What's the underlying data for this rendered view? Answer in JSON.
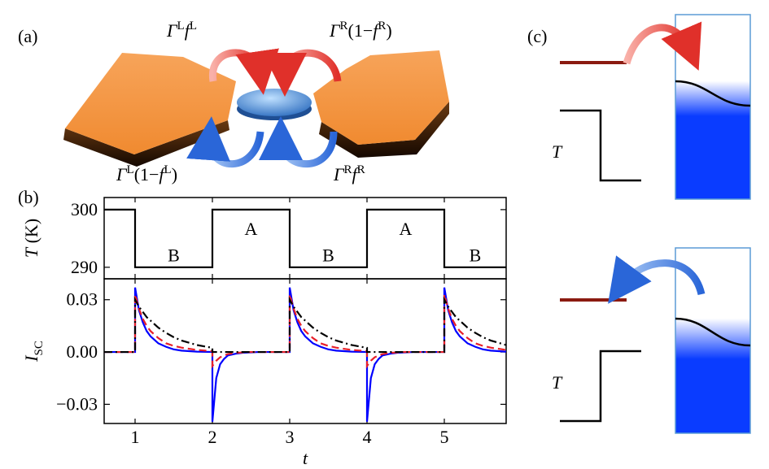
{
  "panel_labels": [
    "(a)",
    "(b)",
    "(c)"
  ],
  "panel_a": {
    "labels": [
      [
        {
          "text": "Γ",
          "italic": true
        },
        {
          "text": "L",
          "sup": true
        },
        {
          "text": "f",
          "italic": true
        },
        {
          "text": "L",
          "sup": true
        }
      ],
      [
        {
          "text": "Γ",
          "italic": true
        },
        {
          "text": "R",
          "sup": true
        },
        {
          "text": "(1−"
        },
        {
          "text": "f",
          "italic": true
        },
        {
          "text": "R",
          "sup": true
        },
        {
          "text": ")"
        }
      ],
      [
        {
          "text": "Γ",
          "italic": true
        },
        {
          "text": "L",
          "sup": true
        },
        {
          "text": "(1−"
        },
        {
          "text": "f",
          "italic": true
        },
        {
          "text": "L",
          "sup": true
        },
        {
          "text": ")"
        }
      ],
      [
        {
          "text": "Γ",
          "italic": true
        },
        {
          "text": "R",
          "sup": true
        },
        {
          "text": "f",
          "italic": true
        },
        {
          "text": "R",
          "sup": true
        }
      ]
    ]
  },
  "panel_c": {
    "labels": [
      "T",
      "T"
    ]
  },
  "chart_data": [
    {
      "type": "line",
      "y_label": [
        {
          "text": "T",
          "italic": true
        },
        {
          "text": " (K)"
        }
      ],
      "xlim": [
        0.6,
        5.8
      ],
      "ylim": [
        288,
        302.1
      ],
      "yticks": [
        290,
        300
      ],
      "x": [
        0.6,
        1,
        1,
        2,
        2,
        3,
        3,
        4,
        4,
        5,
        5,
        5.8
      ],
      "series": [
        {
          "color": "#000000",
          "dash": "solid",
          "values": [
            300,
            300,
            290,
            290,
            300,
            300,
            290,
            290,
            300,
            300,
            290,
            290
          ]
        }
      ],
      "annotations": [
        {
          "text": "B",
          "x": 1.5,
          "y": 292
        },
        {
          "text": "A",
          "x": 2.5,
          "y": 296.6
        },
        {
          "text": "B",
          "x": 3.5,
          "y": 292
        },
        {
          "text": "A",
          "x": 4.5,
          "y": 296.6
        },
        {
          "text": "B",
          "x": 5.4,
          "y": 292
        }
      ]
    },
    {
      "type": "line",
      "y_label": [
        {
          "text": "I",
          "italic": true
        },
        {
          "text": "SC",
          "sub": true
        }
      ],
      "x_label": "t",
      "xlim": [
        0.6,
        5.8
      ],
      "ylim": [
        -0.041,
        0.042
      ],
      "xticks": [
        1,
        2,
        3,
        4,
        5
      ],
      "yticks": [
        {
          "value": 0.03,
          "label": "0.03"
        },
        {
          "value": 0,
          "label": "0.00"
        },
        {
          "value": -0.03,
          "label": "−0.03"
        }
      ],
      "x": [
        0.6,
        1,
        1,
        1.05,
        1.1,
        1.15,
        1.2,
        1.3,
        1.4,
        1.5,
        1.6,
        1.8,
        2,
        2,
        2.05,
        2.1,
        2.15,
        2.2,
        2.3,
        2.4,
        2.5,
        2.6,
        2.8,
        3,
        3,
        3.05,
        3.1,
        3.15,
        3.2,
        3.3,
        3.4,
        3.5,
        3.6,
        3.8,
        4,
        4,
        4.05,
        4.1,
        4.15,
        4.2,
        4.3,
        4.4,
        4.5,
        4.6,
        4.8,
        5,
        5,
        5.05,
        5.1,
        5.15,
        5.2,
        5.3,
        5.4,
        5.5,
        5.6,
        5.8
      ],
      "series": [
        {
          "color": "#0000ff",
          "dash": "solid",
          "values": [
            0,
            0,
            0.037,
            0.024,
            0.017,
            0.012,
            0.009,
            0.005,
            0.003,
            0.0015,
            0.0008,
            0.0002,
            0,
            -0.04,
            -0.015,
            -0.007,
            -0.004,
            -0.002,
            -0.001,
            -0.0004,
            -0.0002,
            0,
            0,
            0,
            0.037,
            0.024,
            0.017,
            0.012,
            0.009,
            0.005,
            0.003,
            0.0015,
            0.0008,
            0.0002,
            0,
            -0.04,
            -0.015,
            -0.007,
            -0.004,
            -0.002,
            -0.001,
            -0.0004,
            -0.0002,
            0,
            0,
            0,
            0.037,
            0.024,
            0.017,
            0.012,
            0.009,
            0.005,
            0.003,
            0.0015,
            0.0008,
            0.0002
          ]
        },
        {
          "color": "#e8202a",
          "dash": "dashed",
          "values": [
            0,
            0,
            0.033,
            0.025,
            0.019,
            0.015,
            0.012,
            0.008,
            0.005,
            0.0035,
            0.0025,
            0.0012,
            0.0005,
            -0.008,
            -0.005,
            -0.003,
            -0.002,
            -0.0012,
            -0.0005,
            -0.0002,
            0,
            0,
            0,
            0,
            0.033,
            0.025,
            0.019,
            0.015,
            0.012,
            0.008,
            0.005,
            0.0035,
            0.0025,
            0.0012,
            0.0005,
            -0.008,
            -0.005,
            -0.003,
            -0.002,
            -0.0012,
            -0.0005,
            -0.0002,
            0,
            0,
            0,
            0,
            0.033,
            0.025,
            0.019,
            0.015,
            0.012,
            0.008,
            0.005,
            0.0035,
            0.0025,
            0.0012
          ]
        },
        {
          "color": "#000000",
          "dash": "dashdot",
          "values": [
            0,
            0,
            0.03,
            0.026,
            0.023,
            0.02,
            0.018,
            0.014,
            0.011,
            0.0085,
            0.0066,
            0.004,
            0.0024,
            0,
            0,
            0,
            0,
            0,
            0,
            0,
            0,
            0,
            0,
            0,
            0.03,
            0.026,
            0.023,
            0.02,
            0.018,
            0.014,
            0.011,
            0.0085,
            0.0066,
            0.004,
            0.0024,
            0,
            0,
            0,
            0,
            0,
            0,
            0,
            0,
            0,
            0,
            0,
            0.03,
            0.026,
            0.023,
            0.02,
            0.018,
            0.014,
            0.011,
            0.0085,
            0.0066,
            0.004
          ]
        }
      ]
    }
  ]
}
